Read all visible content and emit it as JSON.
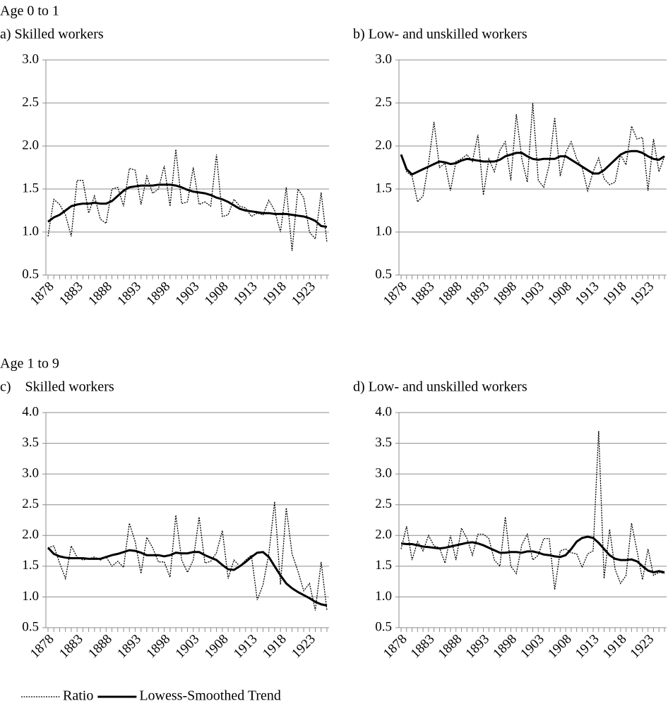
{
  "groups": [
    "Age 0 to 1",
    "Age 1 to 9"
  ],
  "legend": [
    {
      "name": "Ratio",
      "dash": true
    },
    {
      "name": "Lowess-Smoothed Trend",
      "dash": false
    }
  ],
  "chart_data": [
    {
      "type": "line",
      "title": "a) Skilled workers",
      "group": 0,
      "x": [
        1878,
        1879,
        1880,
        1881,
        1882,
        1883,
        1884,
        1885,
        1886,
        1887,
        1888,
        1889,
        1890,
        1891,
        1892,
        1893,
        1894,
        1895,
        1896,
        1897,
        1898,
        1899,
        1900,
        1901,
        1902,
        1903,
        1904,
        1905,
        1906,
        1907,
        1908,
        1909,
        1910,
        1911,
        1912,
        1913,
        1914,
        1915,
        1916,
        1917,
        1918,
        1919,
        1920,
        1921,
        1922,
        1923,
        1924,
        1925,
        1926
      ],
      "series": [
        {
          "color": "#000000",
          "dash": true,
          "values": [
            0.95,
            1.38,
            1.32,
            1.2,
            0.95,
            1.6,
            1.6,
            1.22,
            1.42,
            1.15,
            1.1,
            1.5,
            1.52,
            1.3,
            1.74,
            1.72,
            1.32,
            1.65,
            1.45,
            1.5,
            1.77,
            1.3,
            1.96,
            1.33,
            1.35,
            1.75,
            1.32,
            1.35,
            1.3,
            1.9,
            1.18,
            1.2,
            1.38,
            1.3,
            1.28,
            1.18,
            1.22,
            1.2,
            1.37,
            1.25,
            1.0,
            1.52,
            0.78,
            1.5,
            1.4,
            1.0,
            0.92,
            1.46,
            0.88
          ]
        },
        {
          "color": "#000000",
          "dash": false,
          "values": [
            1.12,
            1.17,
            1.2,
            1.25,
            1.3,
            1.32,
            1.33,
            1.33,
            1.34,
            1.33,
            1.33,
            1.36,
            1.42,
            1.48,
            1.52,
            1.53,
            1.54,
            1.54,
            1.54,
            1.55,
            1.55,
            1.55,
            1.54,
            1.52,
            1.49,
            1.47,
            1.46,
            1.45,
            1.43,
            1.4,
            1.38,
            1.35,
            1.31,
            1.27,
            1.25,
            1.24,
            1.23,
            1.22,
            1.22,
            1.21,
            1.21,
            1.21,
            1.2,
            1.19,
            1.18,
            1.16,
            1.13,
            1.07,
            1.06
          ]
        }
      ],
      "xlim": [
        1878,
        1926
      ],
      "xticks": [
        1878,
        1883,
        1888,
        1893,
        1898,
        1903,
        1908,
        1913,
        1918,
        1923
      ],
      "ylim": [
        0.5,
        3
      ],
      "yticks": [
        {
          "value": 0.5,
          "label": "0.5"
        },
        {
          "value": 1,
          "label": "1.0"
        },
        {
          "value": 1.5,
          "label": "1.5"
        },
        {
          "value": 2,
          "label": "2.0"
        },
        {
          "value": 2.5,
          "label": "2.5"
        },
        {
          "value": 3,
          "label": "3.0"
        }
      ],
      "grid": true
    },
    {
      "type": "line",
      "title": "b) Low- and unskilled workers",
      "group": 0,
      "x": [
        1878,
        1879,
        1880,
        1881,
        1882,
        1883,
        1884,
        1885,
        1886,
        1887,
        1888,
        1889,
        1890,
        1891,
        1892,
        1893,
        1894,
        1895,
        1896,
        1897,
        1898,
        1899,
        1900,
        1901,
        1902,
        1903,
        1904,
        1905,
        1906,
        1907,
        1908,
        1909,
        1910,
        1911,
        1912,
        1913,
        1914,
        1915,
        1916,
        1917,
        1918,
        1919,
        1920,
        1921,
        1922,
        1923,
        1924,
        1925,
        1926
      ],
      "series": [
        {
          "color": "#000000",
          "dash": true,
          "values": [
            1.9,
            1.7,
            1.65,
            1.35,
            1.42,
            1.8,
            2.28,
            1.75,
            1.8,
            1.48,
            1.82,
            1.85,
            1.9,
            1.82,
            2.13,
            1.43,
            1.85,
            1.7,
            1.95,
            2.05,
            1.6,
            2.37,
            1.85,
            1.58,
            2.5,
            1.6,
            1.52,
            1.78,
            2.33,
            1.65,
            1.92,
            2.05,
            1.85,
            1.75,
            1.48,
            1.7,
            1.86,
            1.62,
            1.55,
            1.58,
            1.9,
            1.78,
            2.23,
            2.08,
            2.1,
            1.48,
            2.08,
            1.7,
            1.88
          ]
        },
        {
          "color": "#000000",
          "dash": false,
          "values": [
            1.9,
            1.73,
            1.67,
            1.7,
            1.73,
            1.76,
            1.79,
            1.82,
            1.81,
            1.79,
            1.8,
            1.83,
            1.85,
            1.84,
            1.83,
            1.82,
            1.82,
            1.82,
            1.84,
            1.88,
            1.9,
            1.92,
            1.92,
            1.88,
            1.85,
            1.84,
            1.85,
            1.85,
            1.85,
            1.88,
            1.88,
            1.84,
            1.8,
            1.76,
            1.72,
            1.68,
            1.68,
            1.72,
            1.78,
            1.84,
            1.9,
            1.93,
            1.94,
            1.94,
            1.92,
            1.88,
            1.85,
            1.84,
            1.88
          ]
        }
      ],
      "xlim": [
        1878,
        1926
      ],
      "xticks": [
        1878,
        1883,
        1888,
        1893,
        1898,
        1903,
        1908,
        1913,
        1918,
        1923
      ],
      "ylim": [
        0.5,
        3
      ],
      "yticks": [
        {
          "value": 0.5,
          "label": "0.5"
        },
        {
          "value": 1,
          "label": "1.0"
        },
        {
          "value": 1.5,
          "label": "1.5"
        },
        {
          "value": 2,
          "label": "2.0"
        },
        {
          "value": 2.5,
          "label": "2.5"
        },
        {
          "value": 3,
          "label": "3.0"
        }
      ],
      "grid": true
    },
    {
      "type": "line",
      "title": "c)    Skilled workers",
      "group": 1,
      "x": [
        1878,
        1879,
        1880,
        1881,
        1882,
        1883,
        1884,
        1885,
        1886,
        1887,
        1888,
        1889,
        1890,
        1891,
        1892,
        1893,
        1894,
        1895,
        1896,
        1897,
        1898,
        1899,
        1900,
        1901,
        1902,
        1903,
        1904,
        1905,
        1906,
        1907,
        1908,
        1909,
        1910,
        1911,
        1912,
        1913,
        1914,
        1915,
        1916,
        1917,
        1918,
        1919,
        1920,
        1921,
        1922,
        1923,
        1924,
        1925,
        1926
      ],
      "series": [
        {
          "color": "#000000",
          "dash": true,
          "values": [
            1.8,
            1.83,
            1.55,
            1.3,
            1.83,
            1.65,
            1.6,
            1.62,
            1.65,
            1.6,
            1.65,
            1.5,
            1.58,
            1.48,
            2.2,
            1.9,
            1.38,
            1.97,
            1.8,
            1.57,
            1.57,
            1.32,
            2.33,
            1.6,
            1.4,
            1.6,
            2.3,
            1.55,
            1.58,
            1.72,
            2.08,
            1.3,
            1.6,
            1.5,
            1.6,
            1.68,
            0.95,
            1.2,
            1.7,
            2.55,
            1.2,
            2.45,
            1.7,
            1.42,
            1.1,
            1.22,
            0.78,
            1.57,
            0.78
          ]
        },
        {
          "color": "#000000",
          "dash": false,
          "values": [
            1.8,
            1.7,
            1.66,
            1.64,
            1.63,
            1.63,
            1.63,
            1.62,
            1.62,
            1.62,
            1.65,
            1.68,
            1.7,
            1.73,
            1.76,
            1.75,
            1.72,
            1.68,
            1.68,
            1.68,
            1.66,
            1.68,
            1.72,
            1.71,
            1.71,
            1.73,
            1.73,
            1.68,
            1.64,
            1.6,
            1.52,
            1.45,
            1.44,
            1.5,
            1.57,
            1.65,
            1.72,
            1.73,
            1.65,
            1.5,
            1.35,
            1.22,
            1.14,
            1.08,
            1.03,
            0.98,
            0.92,
            0.88,
            0.86
          ]
        }
      ],
      "xlim": [
        1878,
        1926
      ],
      "xticks": [
        1878,
        1883,
        1888,
        1893,
        1898,
        1903,
        1908,
        1913,
        1918,
        1923
      ],
      "ylim": [
        0.5,
        4
      ],
      "yticks": [
        {
          "value": 0.5,
          "label": "0.5"
        },
        {
          "value": 1,
          "label": "1.0"
        },
        {
          "value": 1.5,
          "label": "1.5"
        },
        {
          "value": 2,
          "label": "2.0"
        },
        {
          "value": 2.5,
          "label": "2.5"
        },
        {
          "value": 3,
          "label": "3.0"
        },
        {
          "value": 3.5,
          "label": "3.5"
        },
        {
          "value": 4,
          "label": "4.0"
        }
      ],
      "grid": true
    },
    {
      "type": "line",
      "title": "d) Low- and unskilled workers",
      "group": 1,
      "x": [
        1878,
        1879,
        1880,
        1881,
        1882,
        1883,
        1884,
        1885,
        1886,
        1887,
        1888,
        1889,
        1890,
        1891,
        1892,
        1893,
        1894,
        1895,
        1896,
        1897,
        1898,
        1899,
        1900,
        1901,
        1902,
        1903,
        1904,
        1905,
        1906,
        1907,
        1908,
        1909,
        1910,
        1911,
        1912,
        1913,
        1914,
        1915,
        1916,
        1917,
        1918,
        1919,
        1920,
        1921,
        1922,
        1923,
        1924,
        1925,
        1926
      ],
      "series": [
        {
          "color": "#000000",
          "dash": true,
          "values": [
            1.78,
            2.15,
            1.6,
            1.9,
            1.75,
            2.0,
            1.83,
            1.8,
            1.55,
            2.0,
            1.6,
            2.12,
            1.95,
            1.68,
            2.02,
            2.02,
            1.95,
            1.6,
            1.5,
            2.3,
            1.5,
            1.38,
            1.85,
            2.02,
            1.6,
            1.68,
            1.95,
            1.95,
            1.12,
            1.75,
            1.78,
            1.72,
            1.7,
            1.48,
            1.7,
            1.75,
            3.7,
            1.3,
            2.1,
            1.45,
            1.22,
            1.35,
            2.2,
            1.75,
            1.28,
            1.78,
            1.35,
            1.4,
            1.38
          ]
        },
        {
          "color": "#000000",
          "dash": false,
          "values": [
            1.87,
            1.86,
            1.86,
            1.84,
            1.82,
            1.81,
            1.8,
            1.79,
            1.8,
            1.82,
            1.84,
            1.86,
            1.88,
            1.89,
            1.87,
            1.84,
            1.8,
            1.76,
            1.72,
            1.72,
            1.73,
            1.73,
            1.72,
            1.74,
            1.74,
            1.72,
            1.69,
            1.68,
            1.66,
            1.65,
            1.68,
            1.78,
            1.9,
            1.96,
            1.98,
            1.96,
            1.88,
            1.78,
            1.68,
            1.62,
            1.6,
            1.6,
            1.61,
            1.58,
            1.5,
            1.43,
            1.4,
            1.42,
            1.4
          ]
        }
      ],
      "xlim": [
        1878,
        1926
      ],
      "xticks": [
        1878,
        1883,
        1888,
        1893,
        1898,
        1903,
        1908,
        1913,
        1918,
        1923
      ],
      "ylim": [
        0.5,
        4
      ],
      "yticks": [
        {
          "value": 0.5,
          "label": "0.5"
        },
        {
          "value": 1,
          "label": "1.0"
        },
        {
          "value": 1.5,
          "label": "1.5"
        },
        {
          "value": 2,
          "label": "2.0"
        },
        {
          "value": 2.5,
          "label": "2.5"
        },
        {
          "value": 3,
          "label": "3.0"
        },
        {
          "value": 3.5,
          "label": "3.5"
        },
        {
          "value": 4,
          "label": "4.0"
        }
      ],
      "grid": true
    }
  ]
}
